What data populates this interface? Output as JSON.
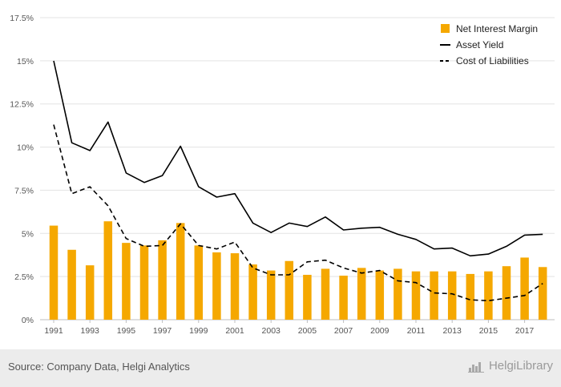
{
  "chart_data": {
    "type": "bar",
    "x": [
      1991,
      1992,
      1993,
      1994,
      1995,
      1996,
      1997,
      1998,
      1999,
      2000,
      2001,
      2002,
      2003,
      2004,
      2005,
      2006,
      2007,
      2008,
      2009,
      2010,
      2011,
      2012,
      2013,
      2014,
      2015,
      2016,
      2017,
      2018
    ],
    "x_tick_labels": [
      "1991",
      "1993",
      "1995",
      "1997",
      "1999",
      "2001",
      "2003",
      "2005",
      "2007",
      "2009",
      "2011",
      "2013",
      "2015",
      "2017"
    ],
    "y_tick_labels": [
      "0%",
      "2.5%",
      "5%",
      "7.5%",
      "10%",
      "12.5%",
      "15%",
      "17.5%"
    ],
    "ylim": [
      0,
      17.5
    ],
    "grid": true,
    "legend_position": "top-right",
    "series": [
      {
        "name": "Net Interest Margin",
        "kind": "bar",
        "color": "#f5a800",
        "values": [
          5.45,
          4.05,
          3.15,
          5.7,
          4.45,
          4.3,
          4.6,
          5.6,
          4.3,
          3.9,
          3.85,
          3.2,
          2.85,
          3.4,
          2.6,
          2.95,
          2.55,
          3.0,
          2.85,
          2.95,
          2.8,
          2.8,
          2.8,
          2.65,
          2.8,
          3.1,
          3.6,
          3.05
        ]
      },
      {
        "name": "Asset Yield",
        "kind": "line",
        "color": "#000000",
        "values": [
          15.0,
          10.25,
          9.8,
          11.45,
          8.5,
          7.95,
          8.35,
          10.05,
          7.7,
          7.1,
          7.3,
          5.6,
          5.05,
          5.6,
          5.4,
          5.95,
          5.2,
          5.3,
          5.35,
          4.95,
          4.65,
          4.1,
          4.15,
          3.7,
          3.8,
          4.25,
          4.9,
          4.95
        ]
      },
      {
        "name": "Cost of Liabilities",
        "kind": "dashed-line",
        "color": "#000000",
        "values": [
          11.3,
          7.3,
          7.7,
          6.6,
          4.7,
          4.25,
          4.3,
          5.55,
          4.3,
          4.1,
          4.5,
          3.0,
          2.6,
          2.6,
          3.35,
          3.45,
          3.0,
          2.7,
          2.85,
          2.25,
          2.15,
          1.55,
          1.5,
          1.15,
          1.1,
          1.25,
          1.4,
          2.1
        ]
      }
    ]
  },
  "footer": {
    "source": "Source: Company Data, Helgi Analytics",
    "brand": "HelgiLibrary"
  }
}
